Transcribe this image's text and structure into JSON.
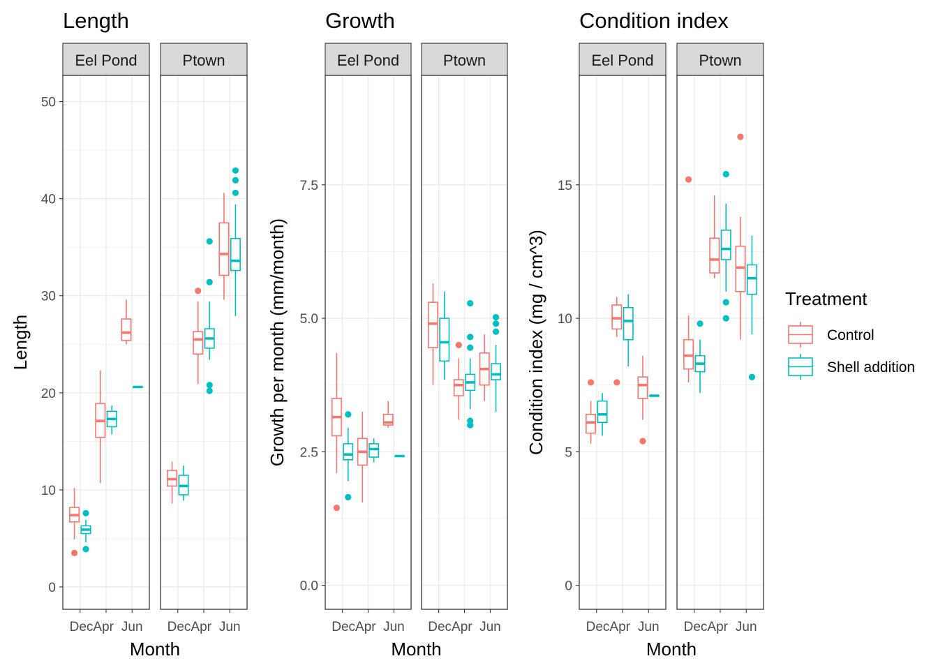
{
  "colors": {
    "Control": "#F8766D",
    "Shell addition": "#00BFC4"
  },
  "legend": {
    "title": "Treatment",
    "items": [
      {
        "label": "Control",
        "color": "#F8766D"
      },
      {
        "label": "Shell addition",
        "color": "#00BFC4"
      }
    ],
    "placement": "right"
  },
  "chart_data": [
    {
      "type": "boxplot",
      "title": "Length",
      "xlabel": "Month",
      "ylabel": "Length",
      "ylim": [
        -2.3,
        52.7
      ],
      "yticks": [
        0,
        10,
        20,
        30,
        40,
        50
      ],
      "categories": [
        "Dec",
        "Apr",
        "Jun"
      ],
      "grid": true,
      "facets": [
        {
          "name": "Eel Pond",
          "boxes": [
            {
              "month": "Dec",
              "treatment": "Control",
              "lower": 4.9,
              "q1": 6.7,
              "median": 7.4,
              "q3": 8.2,
              "upper": 10.2,
              "outliers": [
                3.5
              ]
            },
            {
              "month": "Dec",
              "treatment": "Shell addition",
              "lower": 4.6,
              "q1": 5.5,
              "median": 5.9,
              "q3": 6.3,
              "upper": 6.9,
              "outliers": [
                3.9,
                7.6
              ]
            },
            {
              "month": "Apr",
              "treatment": "Control",
              "lower": 10.7,
              "q1": 15.4,
              "median": 17.1,
              "q3": 18.9,
              "upper": 22.3,
              "outliers": []
            },
            {
              "month": "Apr",
              "treatment": "Shell addition",
              "lower": 15.7,
              "q1": 16.5,
              "median": 17.3,
              "q3": 18.1,
              "upper": 18.7,
              "outliers": []
            },
            {
              "month": "Jun",
              "treatment": "Control",
              "lower": 25.0,
              "q1": 25.4,
              "median": 26.2,
              "q3": 27.6,
              "upper": 29.6,
              "outliers": []
            },
            {
              "month": "Jun",
              "treatment": "Shell addition",
              "lower": 20.6,
              "q1": 20.6,
              "median": 20.6,
              "q3": 20.6,
              "upper": 20.6,
              "outliers": []
            }
          ]
        },
        {
          "name": "Ptown",
          "boxes": [
            {
              "month": "Dec",
              "treatment": "Control",
              "lower": 8.6,
              "q1": 10.4,
              "median": 11.1,
              "q3": 12.0,
              "upper": 12.9,
              "outliers": []
            },
            {
              "month": "Dec",
              "treatment": "Shell addition",
              "lower": 8.9,
              "q1": 9.5,
              "median": 10.4,
              "q3": 11.5,
              "upper": 12.5,
              "outliers": []
            },
            {
              "month": "Apr",
              "treatment": "Control",
              "lower": 20.9,
              "q1": 24.0,
              "median": 25.5,
              "q3": 26.3,
              "upper": 29.4,
              "outliers": [
                30.5
              ]
            },
            {
              "month": "Apr",
              "treatment": "Shell addition",
              "lower": 23.4,
              "q1": 24.6,
              "median": 25.6,
              "q3": 26.6,
              "upper": 29.4,
              "outliers": [
                20.2,
                20.8,
                31.4,
                35.6
              ]
            },
            {
              "month": "Jun",
              "treatment": "Control",
              "lower": 29.6,
              "q1": 32.1,
              "median": 34.3,
              "q3": 37.5,
              "upper": 40.6,
              "outliers": []
            },
            {
              "month": "Jun",
              "treatment": "Shell addition",
              "lower": 27.9,
              "q1": 32.6,
              "median": 33.6,
              "q3": 35.9,
              "upper": 39.4,
              "outliers": [
                40.6,
                41.9,
                42.9
              ]
            }
          ]
        }
      ]
    },
    {
      "type": "boxplot",
      "title": "Growth",
      "xlabel": "Month",
      "ylabel": "Growth per month (mm/month)",
      "ylim": [
        -0.45,
        9.55
      ],
      "yticks": [
        0.0,
        2.5,
        5.0,
        7.5
      ],
      "categories": [
        "Dec",
        "Apr",
        "Jun"
      ],
      "grid": true,
      "facets": [
        {
          "name": "Eel Pond",
          "boxes": [
            {
              "month": "Dec",
              "treatment": "Control",
              "lower": 2.1,
              "q1": 2.8,
              "median": 3.15,
              "q3": 3.5,
              "upper": 4.35,
              "outliers": [
                1.45
              ]
            },
            {
              "month": "Dec",
              "treatment": "Shell addition",
              "lower": 1.95,
              "q1": 2.35,
              "median": 2.45,
              "q3": 2.65,
              "upper": 2.95,
              "outliers": [
                1.65,
                3.2
              ]
            },
            {
              "month": "Apr",
              "treatment": "Control",
              "lower": 1.55,
              "q1": 2.25,
              "median": 2.5,
              "q3": 2.75,
              "upper": 3.25,
              "outliers": []
            },
            {
              "month": "Apr",
              "treatment": "Shell addition",
              "lower": 2.3,
              "q1": 2.4,
              "median": 2.55,
              "q3": 2.65,
              "upper": 2.75,
              "outliers": []
            },
            {
              "month": "Jun",
              "treatment": "Control",
              "lower": 2.95,
              "q1": 3.0,
              "median": 3.05,
              "q3": 3.2,
              "upper": 3.45,
              "outliers": []
            },
            {
              "month": "Jun",
              "treatment": "Shell addition",
              "lower": 2.42,
              "q1": 2.42,
              "median": 2.42,
              "q3": 2.42,
              "upper": 2.42,
              "outliers": []
            }
          ]
        },
        {
          "name": "Ptown",
          "boxes": [
            {
              "month": "Dec",
              "treatment": "Control",
              "lower": 3.75,
              "q1": 4.45,
              "median": 4.9,
              "q3": 5.3,
              "upper": 5.65,
              "outliers": []
            },
            {
              "month": "Dec",
              "treatment": "Shell addition",
              "lower": 3.85,
              "q1": 4.2,
              "median": 4.55,
              "q3": 5.0,
              "upper": 5.5,
              "outliers": []
            },
            {
              "month": "Apr",
              "treatment": "Control",
              "lower": 3.1,
              "q1": 3.55,
              "median": 3.75,
              "q3": 3.85,
              "upper": 4.25,
              "outliers": [
                4.5
              ]
            },
            {
              "month": "Apr",
              "treatment": "Shell addition",
              "lower": 3.3,
              "q1": 3.65,
              "median": 3.8,
              "q3": 3.95,
              "upper": 4.25,
              "outliers": [
                3.0,
                3.08,
                4.45,
                4.65,
                5.28
              ]
            },
            {
              "month": "Jun",
              "treatment": "Control",
              "lower": 3.45,
              "q1": 3.75,
              "median": 4.05,
              "q3": 4.35,
              "upper": 4.7,
              "outliers": []
            },
            {
              "month": "Jun",
              "treatment": "Shell addition",
              "lower": 3.25,
              "q1": 3.85,
              "median": 3.95,
              "q3": 4.15,
              "upper": 4.5,
              "outliers": [
                4.75,
                4.9,
                5.02
              ]
            }
          ]
        }
      ]
    },
    {
      "type": "boxplot",
      "title": "Condition index",
      "xlabel": "Month",
      "ylabel": "Condition index (mg / cm^3)",
      "ylim": [
        -0.9,
        19.1
      ],
      "yticks": [
        0,
        5,
        10,
        15
      ],
      "categories": [
        "Dec",
        "Apr",
        "Jun"
      ],
      "grid": true,
      "facets": [
        {
          "name": "Eel Pond",
          "boxes": [
            {
              "month": "Dec",
              "treatment": "Control",
              "lower": 5.3,
              "q1": 5.7,
              "median": 6.1,
              "q3": 6.4,
              "upper": 6.9,
              "outliers": [
                7.6
              ]
            },
            {
              "month": "Dec",
              "treatment": "Shell addition",
              "lower": 5.6,
              "q1": 6.1,
              "median": 6.4,
              "q3": 6.9,
              "upper": 7.2,
              "outliers": []
            },
            {
              "month": "Apr",
              "treatment": "Control",
              "lower": 9.3,
              "q1": 9.6,
              "median": 10.0,
              "q3": 10.5,
              "upper": 10.8,
              "outliers": [
                7.6
              ]
            },
            {
              "month": "Apr",
              "treatment": "Shell addition",
              "lower": 8.2,
              "q1": 9.2,
              "median": 9.9,
              "q3": 10.4,
              "upper": 10.9,
              "outliers": []
            },
            {
              "month": "Jun",
              "treatment": "Control",
              "lower": 6.2,
              "q1": 7.0,
              "median": 7.5,
              "q3": 7.8,
              "upper": 8.6,
              "outliers": [
                5.4
              ]
            },
            {
              "month": "Jun",
              "treatment": "Shell addition",
              "lower": 7.1,
              "q1": 7.1,
              "median": 7.1,
              "q3": 7.1,
              "upper": 7.1,
              "outliers": []
            }
          ]
        },
        {
          "name": "Ptown",
          "boxes": [
            {
              "month": "Dec",
              "treatment": "Control",
              "lower": 7.6,
              "q1": 8.1,
              "median": 8.6,
              "q3": 9.2,
              "upper": 10.1,
              "outliers": [
                15.2
              ]
            },
            {
              "month": "Dec",
              "treatment": "Shell addition",
              "lower": 7.2,
              "q1": 8.0,
              "median": 8.3,
              "q3": 8.6,
              "upper": 9.2,
              "outliers": [
                9.8
              ]
            },
            {
              "month": "Apr",
              "treatment": "Control",
              "lower": 11.5,
              "q1": 11.7,
              "median": 12.2,
              "q3": 13.0,
              "upper": 14.6,
              "outliers": []
            },
            {
              "month": "Apr",
              "treatment": "Shell addition",
              "lower": 11.0,
              "q1": 12.2,
              "median": 12.6,
              "q3": 13.3,
              "upper": 14.3,
              "outliers": [
                10.0,
                10.6,
                15.4
              ]
            },
            {
              "month": "Jun",
              "treatment": "Control",
              "lower": 9.2,
              "q1": 11.0,
              "median": 11.9,
              "q3": 12.7,
              "upper": 13.8,
              "outliers": [
                16.8
              ]
            },
            {
              "month": "Jun",
              "treatment": "Shell addition",
              "lower": 9.4,
              "q1": 10.9,
              "median": 11.5,
              "q3": 12.0,
              "upper": 13.1,
              "outliers": [
                7.8
              ]
            }
          ]
        }
      ]
    }
  ]
}
